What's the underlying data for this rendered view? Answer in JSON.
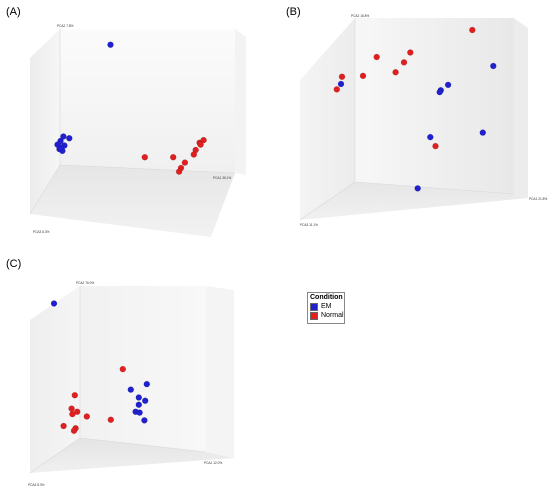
{
  "panels": [
    {
      "label": "(A)",
      "axes": {
        "pc1": "PCA1 36.1%",
        "pc2": "PCA2 7.8%",
        "pc3": "PCA3 8.3%"
      }
    },
    {
      "label": "(B)",
      "axes": {
        "pc1": "PCA1 21.8%",
        "pc2": "PCA2 16.8%",
        "pc3": "PCA3 11.1%"
      }
    },
    {
      "label": "(C)",
      "axes": {
        "pc1": "PCA1 12.0%",
        "pc2": "PCA2 76.0%",
        "pc3": "PCA3 8.3%"
      }
    }
  ],
  "legend": {
    "title": "Condition",
    "items": [
      {
        "label": "EM",
        "color": "#2020d0"
      },
      {
        "label": "Normal",
        "color": "#e02020"
      }
    ]
  },
  "chart_data": [
    {
      "type": "scatter",
      "title": "",
      "note": "3D PCA scatter; point values are projected screen-plane estimates on a 0-100 scale (x: left->right, y: bottom->top)",
      "xlabel": "PCA1 36.1%",
      "ylabel": "PCA2 7.8%",
      "zlabel": "PCA3 8.3%",
      "xlim": [
        0,
        100
      ],
      "ylim": [
        0,
        100
      ],
      "series": [
        {
          "name": "EM",
          "color": "#2020d0",
          "points": [
            [
              38.5,
              93.5
            ],
            [
              13.0,
              40.0
            ],
            [
              14.5,
              42.5
            ],
            [
              17.5,
              41.5
            ],
            [
              11.5,
              38.0
            ],
            [
              15.0,
              37.5
            ],
            [
              12.5,
              35.5
            ],
            [
              14.0,
              34.5
            ],
            [
              13.0,
              36.5
            ]
          ]
        },
        {
          "name": "Normal",
          "color": "#e02020",
          "points": [
            [
              56.0,
              31.0
            ],
            [
              70.5,
              31.0
            ],
            [
              84.0,
              39.0
            ],
            [
              86.0,
              40.5
            ],
            [
              84.5,
              38.0
            ],
            [
              82.0,
              35.0
            ],
            [
              81.0,
              32.5
            ],
            [
              76.5,
              28.0
            ],
            [
              74.5,
              25.0
            ],
            [
              73.5,
              23.0
            ]
          ]
        }
      ]
    },
    {
      "type": "scatter",
      "title": "",
      "note": "3D PCA scatter; projected screen-plane estimates on a 0-100 scale",
      "xlabel": "PCA1 21.8%",
      "ylabel": "PCA2 16.8%",
      "zlabel": "PCA3 11.1%",
      "xlim": [
        0,
        100
      ],
      "ylim": [
        0,
        100
      ],
      "series": [
        {
          "name": "EM",
          "color": "#2020d0",
          "points": [
            [
              82.5,
              80.0
            ],
            [
              61.0,
              69.5
            ],
            [
              57.5,
              66.5
            ],
            [
              57.0,
              65.5
            ],
            [
              77.5,
              43.0
            ],
            [
              52.5,
              40.5
            ],
            [
              10.0,
              70.0
            ],
            [
              46.5,
              12.0
            ]
          ]
        },
        {
          "name": "Normal",
          "color": "#e02020",
          "points": [
            [
              72.5,
              100.0
            ],
            [
              43.0,
              87.5
            ],
            [
              27.0,
              85.0
            ],
            [
              40.0,
              82.0
            ],
            [
              36.0,
              76.5
            ],
            [
              10.5,
              74.0
            ],
            [
              20.5,
              74.5
            ],
            [
              8.0,
              67.0
            ],
            [
              55.0,
              35.5
            ]
          ]
        }
      ]
    },
    {
      "type": "scatter",
      "title": "",
      "note": "3D PCA scatter; projected screen-plane estimates on a 0-100 scale",
      "xlabel": "PCA1 12.0%",
      "ylabel": "PCA2 76.0%",
      "zlabel": "PCA3 8.3%",
      "xlim": [
        0,
        100
      ],
      "ylim": [
        0,
        100
      ],
      "series": [
        {
          "name": "EM",
          "color": "#2020d0",
          "points": [
            [
              10.0,
              96.5
            ],
            [
              58.0,
              42.0
            ],
            [
              68.0,
              45.5
            ],
            [
              63.0,
              37.0
            ],
            [
              67.0,
              35.0
            ],
            [
              63.0,
              32.5
            ],
            [
              61.0,
              28.0
            ],
            [
              63.5,
              27.5
            ],
            [
              66.5,
              22.5
            ]
          ]
        },
        {
          "name": "Normal",
          "color": "#e02020",
          "points": [
            [
              53.0,
              55.0
            ],
            [
              23.0,
              38.5
            ],
            [
              21.0,
              30.0
            ],
            [
              24.5,
              28.0
            ],
            [
              21.5,
              26.5
            ],
            [
              30.5,
              25.0
            ],
            [
              45.5,
              23.0
            ],
            [
              16.0,
              19.0
            ],
            [
              23.5,
              17.5
            ],
            [
              22.5,
              16.0
            ]
          ]
        }
      ]
    }
  ]
}
